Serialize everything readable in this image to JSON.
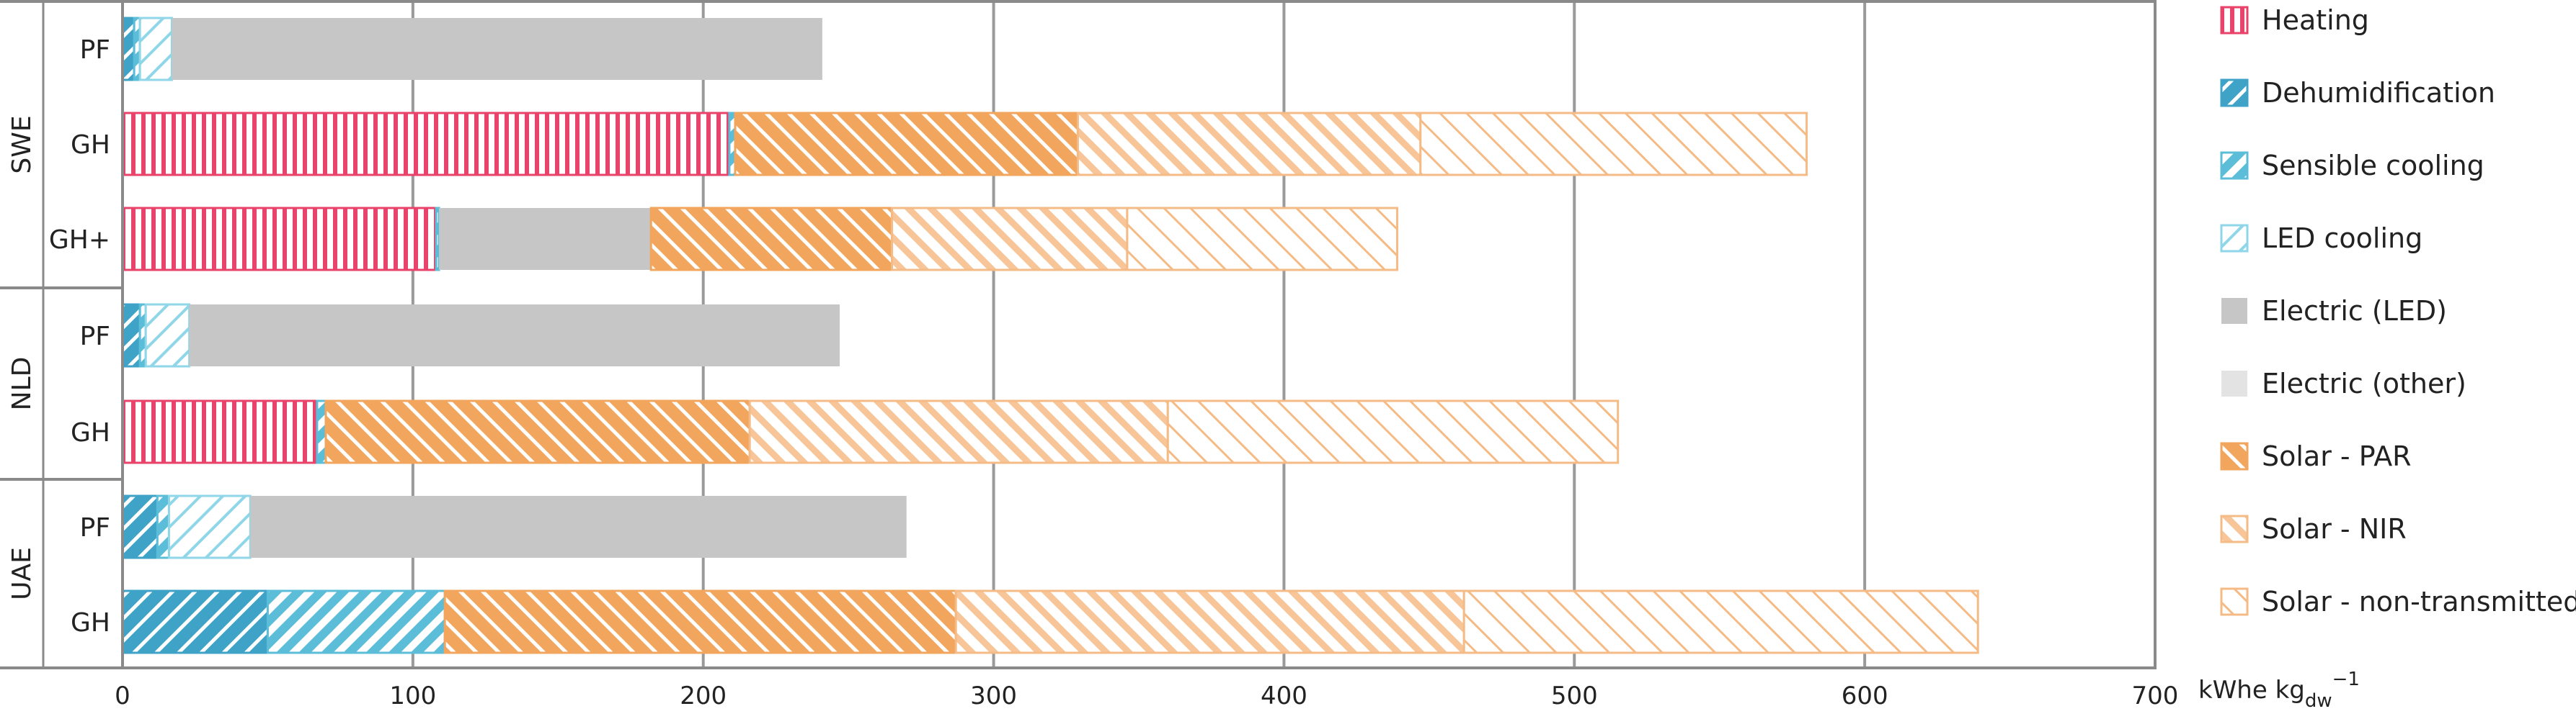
{
  "chart_data": {
    "type": "bar",
    "orientation": "horizontal",
    "stacked": true,
    "xlabel": "kWhe kg",
    "xlabel_sub": "dw",
    "xlabel_sup": "−1",
    "xlim": [
      0,
      700
    ],
    "xticks": [
      0,
      100,
      200,
      300,
      400,
      500,
      600,
      700
    ],
    "grid": "vertical",
    "legend_position": "right",
    "groups": [
      {
        "name": "SWE",
        "rows": [
          "PF",
          "GH",
          "GH+"
        ]
      },
      {
        "name": "NLD",
        "rows": [
          "PF",
          "GH"
        ]
      },
      {
        "name": "UAE",
        "rows": [
          "PF",
          "GH"
        ]
      }
    ],
    "series": [
      {
        "name": "Heating",
        "color": "#e8436a",
        "pattern": "vertical",
        "values": [
          0,
          209,
          108,
          0,
          67,
          0,
          0
        ]
      },
      {
        "name": "Dehumidification",
        "color": "#3fa3c8",
        "pattern": "diagonal-dense",
        "values": [
          4,
          0,
          0,
          6,
          0,
          12,
          50
        ]
      },
      {
        "name": "Sensible cooling",
        "color": "#5bbdd8",
        "pattern": "diagonal-medium",
        "values": [
          2,
          2,
          1,
          2,
          3,
          4,
          61
        ]
      },
      {
        "name": "LED cooling",
        "color": "#8fd7e8",
        "pattern": "diagonal-light",
        "values": [
          11,
          0,
          0,
          15,
          0,
          28,
          0
        ]
      },
      {
        "name": "Electric (LED)",
        "color": "#c6c6c6",
        "pattern": "solid",
        "values": [
          224,
          0,
          73,
          224,
          0,
          226,
          0
        ]
      },
      {
        "name": "Electric (other)",
        "color": "#e3e3e3",
        "pattern": "solid",
        "values": [
          0,
          0,
          0,
          0,
          0,
          0,
          0
        ]
      },
      {
        "name": "Solar - PAR",
        "color": "#f2a55c",
        "pattern": "dense-hatch",
        "values": [
          0,
          118,
          83,
          0,
          146,
          0,
          176
        ]
      },
      {
        "name": "Solar - NIR",
        "color": "#f5bb86",
        "pattern": "medium-hatch",
        "values": [
          0,
          118,
          81,
          0,
          144,
          0,
          175
        ]
      },
      {
        "name": "Solar - non-transmitted",
        "color": "#f5bb86",
        "pattern": "light-hatch",
        "values": [
          0,
          133,
          93,
          0,
          155,
          0,
          177
        ]
      }
    ]
  }
}
